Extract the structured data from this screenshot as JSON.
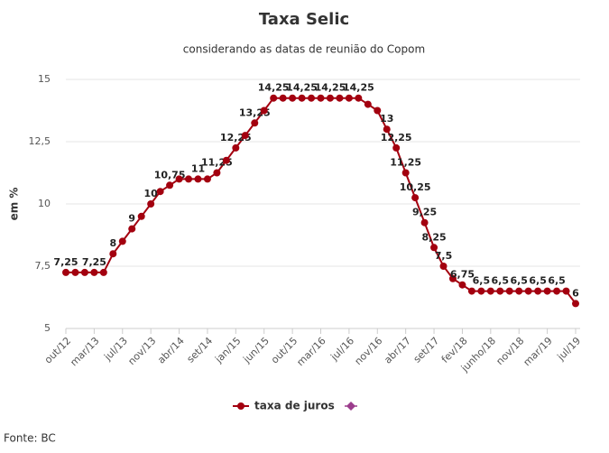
{
  "chart_data": {
    "type": "line",
    "title": "Taxa Selic",
    "subtitle": "considerando as datas de reunião do Copom",
    "y_label": "em %",
    "source": "Fonte: BC",
    "categories": [
      "out/12",
      null,
      null,
      "mar/13",
      null,
      null,
      "jul/13",
      null,
      null,
      "nov/13",
      null,
      null,
      "abr/14",
      null,
      null,
      "set/14",
      null,
      null,
      "jan/15",
      null,
      null,
      "jun/15",
      null,
      null,
      "out/15",
      null,
      null,
      "mar/16",
      null,
      null,
      "jul/16",
      null,
      null,
      "nov/16",
      null,
      null,
      "abr/17",
      null,
      null,
      "set/17",
      null,
      null,
      "fev/18",
      null,
      null,
      "junho/18",
      null,
      null,
      "nov/18",
      null,
      null,
      "mar/19",
      null,
      null,
      "jul/19"
    ],
    "series": [
      {
        "name": "taxa de juros",
        "color": "#a3000f",
        "values": [
          7.25,
          7.25,
          7.25,
          7.25,
          7.25,
          8,
          8.5,
          9,
          9.5,
          10,
          10.5,
          10.75,
          11,
          11,
          11,
          11,
          11.25,
          11.75,
          12.25,
          12.75,
          13.25,
          13.75,
          14.25,
          14.25,
          14.25,
          14.25,
          14.25,
          14.25,
          14.25,
          14.25,
          14.25,
          14.25,
          14,
          13.75,
          13,
          12.25,
          11.25,
          10.25,
          9.25,
          8.25,
          7.5,
          7,
          6.75,
          6.5,
          6.5,
          6.5,
          6.5,
          6.5,
          6.5,
          6.5,
          6.5,
          6.5,
          6.5,
          6.5,
          6
        ],
        "value_labels": [
          "7,25",
          null,
          null,
          "7,25",
          null,
          "8",
          null,
          "9",
          null,
          "10",
          null,
          "10,75",
          null,
          null,
          "11",
          null,
          "11,25",
          null,
          "12,25",
          null,
          "13,25",
          null,
          "14,25",
          null,
          null,
          "14,25",
          null,
          null,
          "14,25",
          null,
          null,
          "14,25",
          null,
          null,
          "13",
          "12,25",
          "11,25",
          "10,25",
          "9,25",
          "8,25",
          "7,5",
          null,
          "6,75",
          null,
          "6,5",
          null,
          "6,5",
          null,
          "6,5",
          null,
          "6,5",
          null,
          "6,5",
          null,
          "6"
        ]
      }
    ],
    "ylim": [
      5,
      15
    ],
    "yticks": [
      5,
      {
        "value": 7.5,
        "label": "7,5"
      },
      10,
      {
        "value": 12.5,
        "label": "12,5"
      },
      15
    ],
    "grid": true
  }
}
